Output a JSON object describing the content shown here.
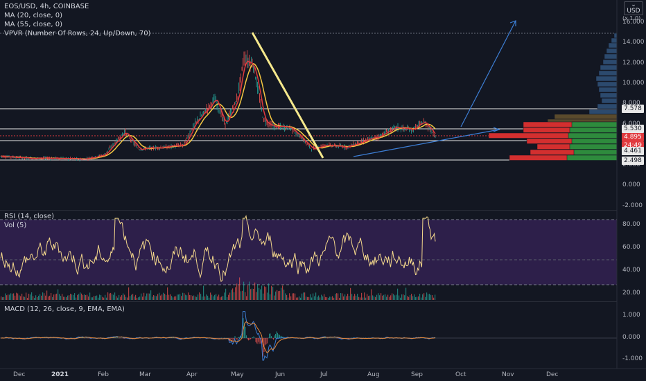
{
  "legend": {
    "symbol": "EOS/USD, 4h, COINBASE",
    "ma20": "MA (20, close, 0)",
    "ma55": "MA (55, close, 0)",
    "vpvr": "VPVR (Number Of Rows, 24, Up/Down, 70)",
    "rsi": "RSI (14, close)",
    "vol": "Vol (5)",
    "macd": "MACD (12, 26, close, 9, EMA, EMA)"
  },
  "currency": {
    "label": "USD",
    "dropdown": "⌄"
  },
  "log_hint": "(x 1.0)",
  "price_axis": [
    "16.000",
    "14.000",
    "12.000",
    "10.000",
    "8.000",
    "6.000",
    "4.000",
    "2.000",
    "0.000",
    "-2.000"
  ],
  "price_tags": {
    "level_high": "7.578",
    "level_mid": "5.530",
    "current": "4.895",
    "countdown": "24:49",
    "level_low2": "4.461",
    "level_low": "2.498"
  },
  "rsi_axis": [
    "80.00",
    "60.00",
    "40.00",
    "20.00"
  ],
  "macd_axis": [
    "1.000",
    "0.000",
    "-1.000"
  ],
  "time_axis": [
    "Dec",
    "2021",
    "Feb",
    "Mar",
    "Apr",
    "May",
    "Jun",
    "Jul",
    "Aug",
    "Sep",
    "Oct",
    "Nov",
    "Dec"
  ],
  "colors": {
    "background": "#131722",
    "ma20": "#e03a3e",
    "ma55": "#f5c842",
    "candle_up": "#26a69a",
    "candle_down": "#ef5350",
    "trendline_down": "#f5e88c",
    "trendline_up": "#3d7fd6",
    "rsi_line": "#f5d98c",
    "rsi_band": "#2d1f4a",
    "vpvr_up": "#2e8b3d",
    "vpvr_down": "#d32f2f",
    "vpvr_dim": "#5a4a2c",
    "vpvr_blue": "#2c4a6e"
  },
  "chart_data": {
    "type": "line",
    "title": "EOS/USD, 4h, COINBASE",
    "x": [
      "Dec",
      "2021",
      "Feb",
      "Mar",
      "Apr",
      "May",
      "Jun",
      "Jul",
      "Aug",
      "Sep"
    ],
    "series": [
      {
        "name": "EOS/USD",
        "values": [
          2.7,
          2.6,
          3.6,
          3.8,
          5.2,
          12.5,
          5.5,
          3.8,
          4.6,
          5.7
        ]
      }
    ],
    "ylim": [
      -2,
      17
    ],
    "horizontal_levels": [
      7.578,
      5.53,
      4.461,
      2.498
    ],
    "current_price": 4.895
  }
}
